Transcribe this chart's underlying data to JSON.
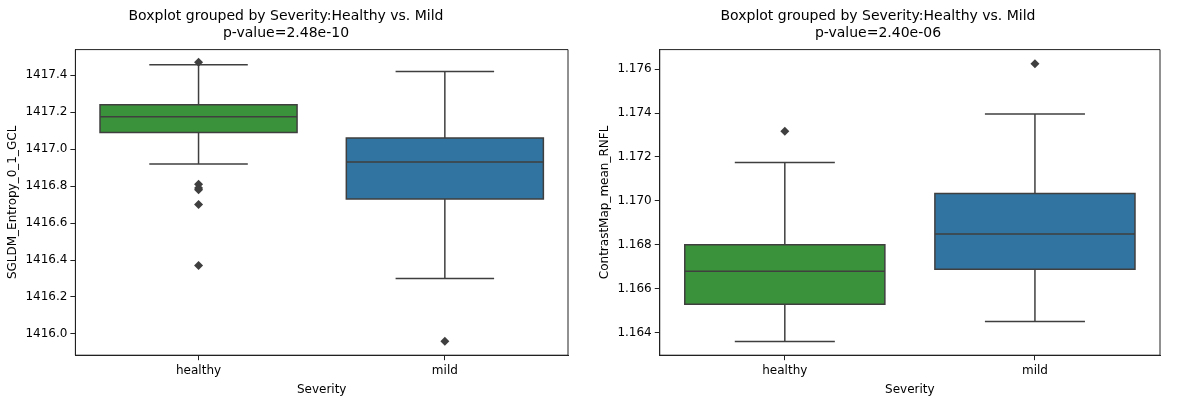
{
  "chart_data": [
    {
      "type": "box",
      "title": "Boxplot grouped by Severity:Healthy vs. Mild",
      "subtitle": "p-value=2.48e-10",
      "xlabel": "Severity",
      "ylabel": "SGLDM_Entropy_0_1_GCL",
      "categories": [
        "healthy",
        "mild"
      ],
      "boxes": [
        {
          "low": 1416.92,
          "q1": 1417.09,
          "median": 1417.176,
          "q3": 1417.24,
          "high": 1417.457,
          "outliers": [
            1417.47,
            1416.81,
            1416.79,
            1416.78,
            1416.7,
            1416.37
          ]
        },
        {
          "low": 1416.3,
          "q1": 1416.73,
          "median": 1416.93,
          "q3": 1417.06,
          "high": 1417.42,
          "outliers": [
            1415.96
          ]
        }
      ],
      "colors": [
        "#3a923a",
        "#3274a1"
      ],
      "ylim": [
        1415.885,
        1417.539
      ],
      "yticks": [
        {
          "value": 1416.0,
          "label": "1416.0"
        },
        1416.2,
        1416.4,
        1416.6,
        1416.8,
        {
          "value": 1417.0,
          "label": "1417.0"
        },
        1417.2,
        1417.4
      ],
      "grid": false
    },
    {
      "type": "box",
      "title": "Boxplot grouped by Severity:Healthy vs. Mild",
      "subtitle": "p-value=2.40e-06",
      "xlabel": "Severity",
      "ylabel": "ContrastMap_mean_RNFL",
      "categories": [
        "healthy",
        "mild"
      ],
      "boxes": [
        {
          "low": 1.16359,
          "q1": 1.16528,
          "median": 1.16679,
          "q3": 1.16799,
          "high": 1.17174,
          "outliers": [
            1.17317
          ]
        },
        {
          "low": 1.1645,
          "q1": 1.16688,
          "median": 1.16849,
          "q3": 1.17033,
          "high": 1.17396,
          "outliers": [
            1.17625
          ]
        }
      ],
      "colors": [
        "#3a923a",
        "#3274a1"
      ],
      "ylim": [
        1.16296,
        1.17689
      ],
      "yticks": [
        1.164,
        1.166,
        1.168,
        {
          "value": 1.17,
          "label": "1.170"
        },
        1.172,
        1.174,
        1.176
      ],
      "grid": false
    }
  ]
}
